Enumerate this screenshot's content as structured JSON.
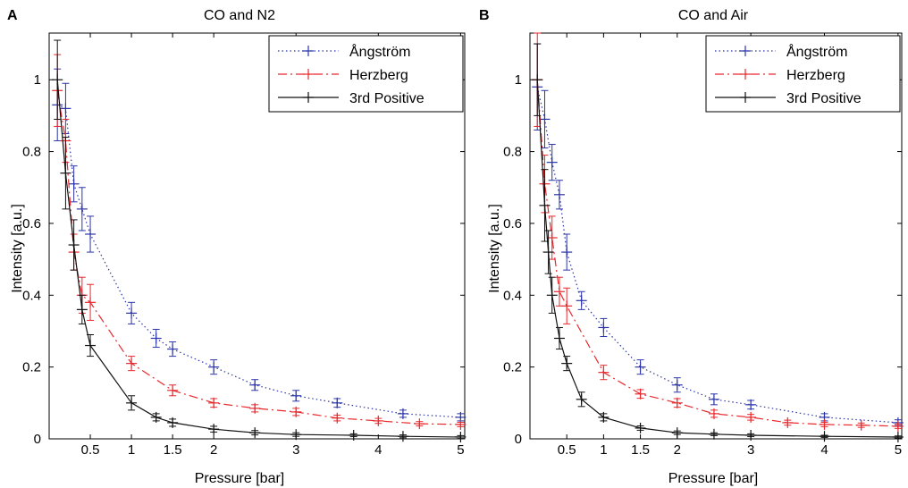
{
  "chart_data": [
    {
      "type": "line",
      "panel_label": "A",
      "title": "CO and N2",
      "xlabel": "Pressure [bar]",
      "ylabel": "Intensity [a.u.]",
      "xlim": [
        0,
        5.05
      ],
      "ylim": [
        0,
        1.13
      ],
      "xticks": [
        0.5,
        1,
        1.5,
        2,
        3,
        4,
        5
      ],
      "xtick_labels": [
        "0.5",
        "1",
        "1.5",
        "2",
        "3",
        "4",
        "5"
      ],
      "yticks": [
        0,
        0.2,
        0.4,
        0.6,
        0.8,
        1
      ],
      "ytick_labels": [
        "0",
        "0.2",
        "0.4",
        "0.6",
        "0.8",
        "1"
      ],
      "grid": false,
      "legend_position": "top-right",
      "series": [
        {
          "name": "Ångström",
          "color": "#2b35a8",
          "dash": "dotted",
          "x": [
            0.1,
            0.2,
            0.3,
            0.4,
            0.5,
            1.0,
            1.3,
            1.5,
            2.0,
            2.5,
            3.0,
            3.5,
            4.3,
            5.0
          ],
          "y": [
            0.93,
            0.92,
            0.71,
            0.64,
            0.57,
            0.35,
            0.28,
            0.25,
            0.2,
            0.15,
            0.12,
            0.1,
            0.07,
            0.06
          ],
          "err": [
            0.1,
            0.07,
            0.05,
            0.06,
            0.05,
            0.03,
            0.025,
            0.02,
            0.02,
            0.015,
            0.015,
            0.012,
            0.01,
            0.01
          ]
        },
        {
          "name": "Herzberg",
          "color": "#e8282d",
          "dash": "dashdot",
          "x": [
            0.1,
            0.2,
            0.3,
            0.4,
            0.5,
            1.0,
            1.5,
            2.0,
            2.5,
            3.0,
            3.5,
            4.0,
            4.5,
            5.0
          ],
          "y": [
            0.97,
            0.83,
            0.52,
            0.4,
            0.38,
            0.21,
            0.135,
            0.1,
            0.085,
            0.075,
            0.058,
            0.05,
            0.042,
            0.04
          ],
          "err": [
            0.1,
            0.06,
            0.05,
            0.05,
            0.05,
            0.02,
            0.015,
            0.012,
            0.01,
            0.01,
            0.008,
            0.007,
            0.006,
            0.006
          ]
        },
        {
          "name": "3rd Positive",
          "color": "#111111",
          "dash": "solid",
          "x": [
            0.1,
            0.2,
            0.3,
            0.4,
            0.5,
            1.0,
            1.3,
            1.5,
            2.0,
            2.5,
            3.0,
            3.7,
            4.3,
            5.0
          ],
          "y": [
            1.0,
            0.74,
            0.54,
            0.36,
            0.26,
            0.1,
            0.06,
            0.045,
            0.027,
            0.017,
            0.012,
            0.01,
            0.007,
            0.005
          ],
          "err": [
            0.11,
            0.1,
            0.07,
            0.04,
            0.03,
            0.02,
            0.01,
            0.01,
            0.008,
            0.006,
            0.005,
            0.004,
            0.004,
            0.004
          ]
        }
      ]
    },
    {
      "type": "line",
      "panel_label": "B",
      "title": "CO and Air",
      "xlabel": "Pressure [bar]",
      "ylabel": "Intensity [a.u.]",
      "xlim": [
        0,
        5.05
      ],
      "ylim": [
        0,
        1.13
      ],
      "xticks": [
        0.5,
        1,
        1.5,
        2,
        3,
        4,
        5
      ],
      "xtick_labels": [
        "0.5",
        "1",
        "1.5",
        "2",
        "3",
        "4",
        "5"
      ],
      "yticks": [
        0,
        0.2,
        0.4,
        0.6,
        0.8,
        1
      ],
      "ytick_labels": [
        "0",
        "0.2",
        "0.4",
        "0.6",
        "0.8",
        "1"
      ],
      "grid": false,
      "legend_position": "top-right",
      "series": [
        {
          "name": "Ångström",
          "color": "#2b35a8",
          "dash": "dotted",
          "x": [
            0.1,
            0.2,
            0.3,
            0.4,
            0.5,
            0.7,
            1.0,
            1.5,
            2.0,
            2.5,
            3.0,
            4.0,
            5.0
          ],
          "y": [
            0.98,
            0.89,
            0.77,
            0.68,
            0.52,
            0.385,
            0.31,
            0.2,
            0.15,
            0.11,
            0.095,
            0.06,
            0.045
          ],
          "err": [
            0.12,
            0.08,
            0.05,
            0.04,
            0.05,
            0.025,
            0.025,
            0.02,
            0.02,
            0.015,
            0.012,
            0.01,
            0.008
          ]
        },
        {
          "name": "Herzberg",
          "color": "#e8282d",
          "dash": "dashdot",
          "x": [
            0.1,
            0.2,
            0.3,
            0.4,
            0.5,
            1.0,
            1.5,
            2.0,
            2.5,
            3.0,
            3.5,
            4.0,
            4.5,
            5.0
          ],
          "y": [
            1.0,
            0.71,
            0.56,
            0.41,
            0.37,
            0.185,
            0.125,
            0.1,
            0.07,
            0.06,
            0.045,
            0.04,
            0.038,
            0.035
          ],
          "err": [
            0.13,
            0.08,
            0.06,
            0.04,
            0.05,
            0.02,
            0.012,
            0.012,
            0.01,
            0.008,
            0.007,
            0.006,
            0.006,
            0.006
          ]
        },
        {
          "name": "3rd Positive",
          "color": "#111111",
          "dash": "solid",
          "x": [
            0.1,
            0.2,
            0.25,
            0.3,
            0.4,
            0.5,
            0.7,
            1.0,
            1.5,
            2.0,
            2.5,
            3.0,
            4.0,
            5.0
          ],
          "y": [
            1.0,
            0.65,
            0.52,
            0.4,
            0.28,
            0.21,
            0.11,
            0.06,
            0.03,
            0.017,
            0.013,
            0.01,
            0.007,
            0.005
          ],
          "err": [
            0.1,
            0.1,
            0.06,
            0.05,
            0.03,
            0.02,
            0.02,
            0.01,
            0.006,
            0.005,
            0.004,
            0.004,
            0.003,
            0.003
          ]
        }
      ]
    }
  ]
}
